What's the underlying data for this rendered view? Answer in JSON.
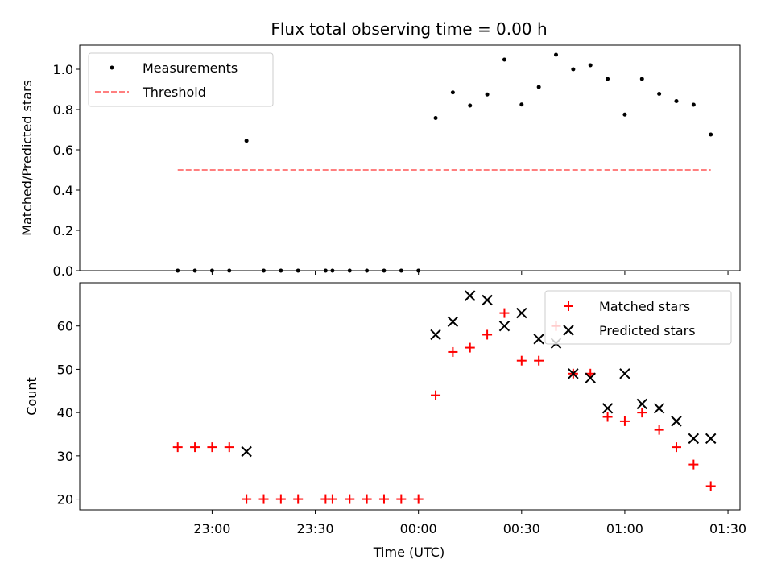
{
  "chart_data": [
    {
      "type": "scatter",
      "title": "Flux total observing time = 0.00 h",
      "xlabel": "",
      "ylabel": "Matched/Predicted stars",
      "ylim": [
        0,
        1.12
      ],
      "yticks": [
        "0.0",
        "0.2",
        "0.4",
        "0.6",
        "0.8",
        "1.0"
      ],
      "grid": false,
      "legend": "top-left",
      "series": [
        {
          "name": "Measurements",
          "color": "#000000",
          "marker": "dot",
          "points": [
            [
              "22:50",
              0.0
            ],
            [
              "22:55",
              0.0
            ],
            [
              "23:00",
              0.0
            ],
            [
              "23:05",
              0.0
            ],
            [
              "23:10",
              0.645
            ],
            [
              "23:15",
              0.0
            ],
            [
              "23:20",
              0.0
            ],
            [
              "23:25",
              0.0
            ],
            [
              "23:33",
              0.0
            ],
            [
              "23:35",
              0.0
            ],
            [
              "23:40",
              0.0
            ],
            [
              "23:45",
              0.0
            ],
            [
              "23:50",
              0.0
            ],
            [
              "23:55",
              0.0
            ],
            [
              "00:00",
              0.0
            ],
            [
              "00:05",
              0.758
            ],
            [
              "00:10",
              0.885
            ],
            [
              "00:15",
              0.82
            ],
            [
              "00:20",
              0.875
            ],
            [
              "00:25",
              1.048
            ],
            [
              "00:30",
              0.825
            ],
            [
              "00:35",
              0.912
            ],
            [
              "00:40",
              1.072
            ],
            [
              "00:45",
              1.0
            ],
            [
              "00:50",
              1.02
            ],
            [
              "00:55",
              0.952
            ],
            [
              "01:00",
              0.775
            ],
            [
              "01:05",
              0.952
            ],
            [
              "01:10",
              0.878
            ],
            [
              "01:15",
              0.842
            ],
            [
              "01:20",
              0.824
            ],
            [
              "01:25",
              0.676
            ]
          ]
        },
        {
          "name": "Threshold",
          "color": "#ff7f7f",
          "style": "dashed",
          "points": [
            [
              "22:50",
              0.5
            ],
            [
              "01:25",
              0.5
            ]
          ]
        }
      ]
    },
    {
      "type": "scatter",
      "xlabel": "Time (UTC)",
      "ylabel": "Count",
      "ylim": [
        17.5,
        70
      ],
      "yticks": [
        "20",
        "30",
        "40",
        "50",
        "60"
      ],
      "xticks": [
        "23:00",
        "23:30",
        "00:00",
        "00:30",
        "01:00",
        "01:30"
      ],
      "grid": false,
      "legend": "top-right",
      "series": [
        {
          "name": "Matched stars",
          "color": "#ff0000",
          "marker": "plus",
          "points": [
            [
              "22:50",
              32
            ],
            [
              "22:55",
              32
            ],
            [
              "23:00",
              32
            ],
            [
              "23:05",
              32
            ],
            [
              "23:10",
              20
            ],
            [
              "23:15",
              20
            ],
            [
              "23:20",
              20
            ],
            [
              "23:25",
              20
            ],
            [
              "23:33",
              20
            ],
            [
              "23:35",
              20
            ],
            [
              "23:40",
              20
            ],
            [
              "23:45",
              20
            ],
            [
              "23:50",
              20
            ],
            [
              "23:55",
              20
            ],
            [
              "00:00",
              20
            ],
            [
              "00:05",
              44
            ],
            [
              "00:10",
              54
            ],
            [
              "00:15",
              55
            ],
            [
              "00:20",
              58
            ],
            [
              "00:25",
              63
            ],
            [
              "00:30",
              52
            ],
            [
              "00:35",
              52
            ],
            [
              "00:40",
              60
            ],
            [
              "00:45",
              49
            ],
            [
              "00:50",
              49
            ],
            [
              "00:55",
              39
            ],
            [
              "01:00",
              38
            ],
            [
              "01:05",
              40
            ],
            [
              "01:10",
              36
            ],
            [
              "01:15",
              32
            ],
            [
              "01:20",
              28
            ],
            [
              "01:25",
              23
            ]
          ]
        },
        {
          "name": "Predicted stars",
          "color": "#000000",
          "marker": "x",
          "points": [
            [
              "23:10",
              31
            ],
            [
              "00:05",
              58
            ],
            [
              "00:10",
              61
            ],
            [
              "00:15",
              67
            ],
            [
              "00:20",
              66
            ],
            [
              "00:25",
              60
            ],
            [
              "00:30",
              63
            ],
            [
              "00:35",
              57
            ],
            [
              "00:40",
              56
            ],
            [
              "00:45",
              49
            ],
            [
              "00:50",
              48
            ],
            [
              "00:55",
              41
            ],
            [
              "01:00",
              49
            ],
            [
              "01:05",
              42
            ],
            [
              "01:10",
              41
            ],
            [
              "01:15",
              38
            ],
            [
              "01:20",
              34
            ],
            [
              "01:25",
              34
            ]
          ]
        }
      ]
    }
  ]
}
